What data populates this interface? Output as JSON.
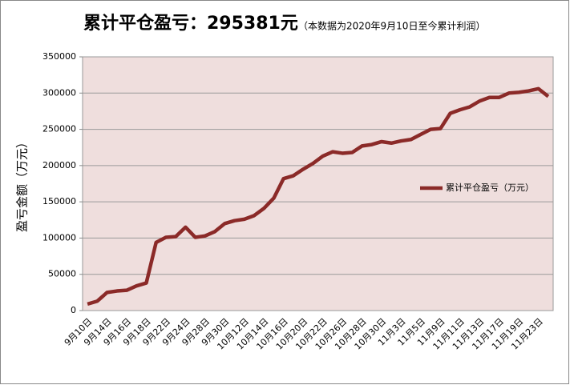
{
  "chart_data": {
    "type": "line",
    "title": "累计平仓盈亏：295381元",
    "subtitle": "（本数据为2020年9月10日至今累计利润）",
    "y_label": "盈亏金额（万元）",
    "categories": [
      "9月10日",
      null,
      "9月14日",
      null,
      "9月16日",
      null,
      "9月18日",
      null,
      "9月22日",
      null,
      "9月24日",
      null,
      "9月28日",
      null,
      "9月30日",
      null,
      "10月12日",
      null,
      "10月14日",
      null,
      "10月16日",
      null,
      "10月20日",
      null,
      "10月22日",
      null,
      "10月26日",
      null,
      "10月28日",
      null,
      "10月30日",
      null,
      "11月3日",
      null,
      "11月5日",
      null,
      "11月9日",
      null,
      "11月11日",
      null,
      "11月13日",
      null,
      "11月17日",
      null,
      "11月19日",
      null,
      "11月23日",
      null
    ],
    "series": [
      {
        "name": "累计平仓盈亏（万元）",
        "color": "#8b2a28",
        "values": [
          9000,
          13000,
          25000,
          27000,
          28000,
          34000,
          38000,
          94000,
          101000,
          102000,
          115000,
          101000,
          103000,
          109000,
          120000,
          124000,
          126000,
          131000,
          141000,
          155000,
          182000,
          186000,
          195000,
          203000,
          213000,
          219000,
          217000,
          218000,
          227000,
          229000,
          233000,
          231000,
          234000,
          236000,
          243000,
          250000,
          251000,
          272000,
          277000,
          281000,
          289000,
          294000,
          294000,
          300000,
          301000,
          303000,
          306000,
          295381
        ]
      }
    ],
    "ylim": [
      0,
      350000
    ],
    "yticks": [
      0,
      50000,
      100000,
      150000,
      200000,
      250000,
      300000,
      350000
    ],
    "grid": true,
    "legend": "right"
  }
}
